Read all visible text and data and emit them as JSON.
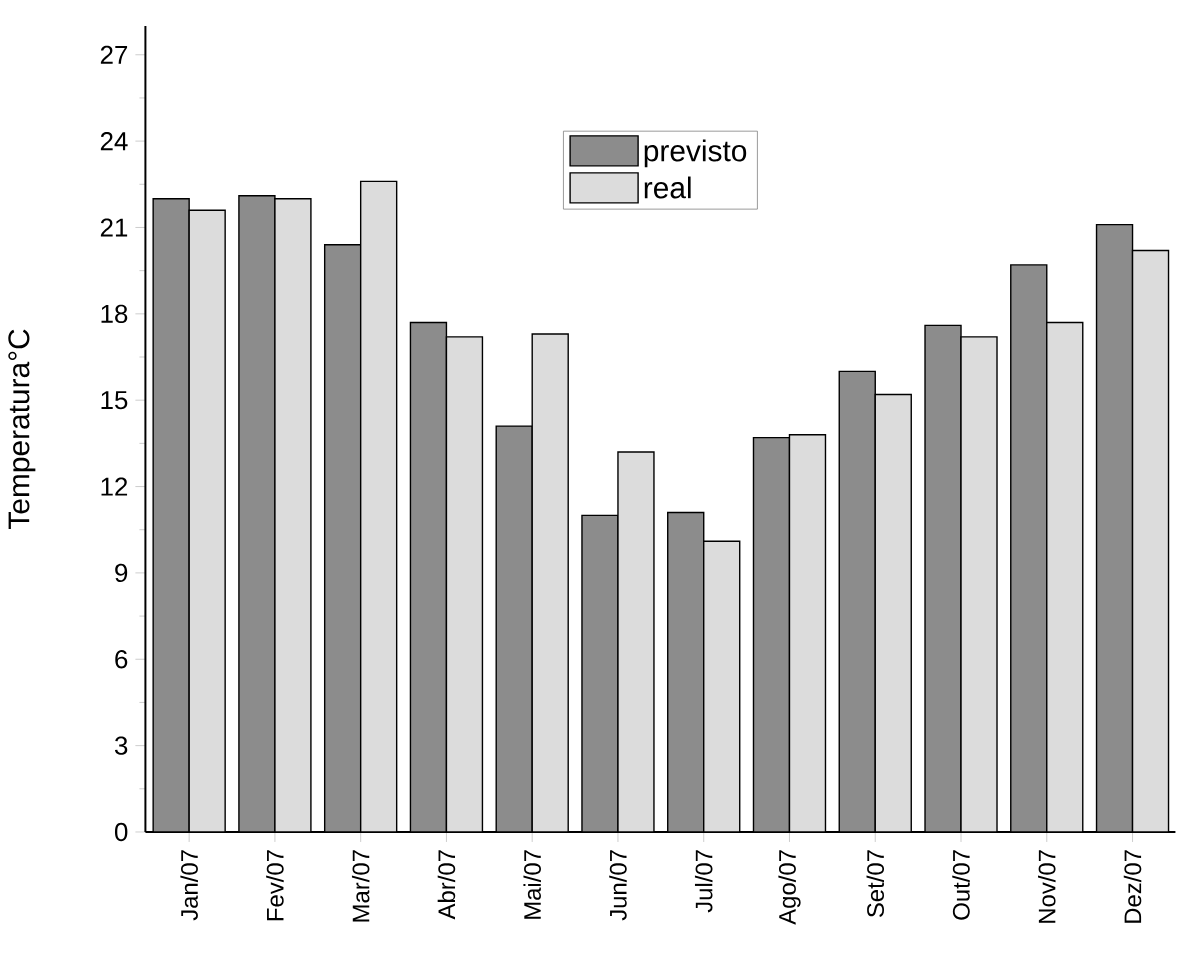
{
  "chart_data": {
    "type": "bar",
    "ylabel": "Temperatura°C",
    "categories": [
      "Jan/07",
      "Fev/07",
      "Mar/07",
      "Abr/07",
      "Mai/07",
      "Jun/07",
      "Jul/07",
      "Ago/07",
      "Set/07",
      "Out/07",
      "Nov/07",
      "Dez/07"
    ],
    "series": [
      {
        "name": "previsto",
        "color": "#8c8c8c",
        "values": [
          22.0,
          22.1,
          20.4,
          17.7,
          14.1,
          11.0,
          11.1,
          13.7,
          16.0,
          17.6,
          19.7,
          21.1
        ]
      },
      {
        "name": "real",
        "color": "#dcdcdc",
        "values": [
          21.6,
          22.0,
          22.6,
          17.2,
          17.3,
          13.2,
          10.1,
          13.8,
          15.2,
          17.2,
          17.7,
          20.2
        ]
      }
    ],
    "ylim": [
      0,
      28
    ],
    "yticks": [
      0,
      3,
      6,
      9,
      12,
      15,
      18,
      21,
      24,
      27
    ],
    "legend": "top"
  }
}
